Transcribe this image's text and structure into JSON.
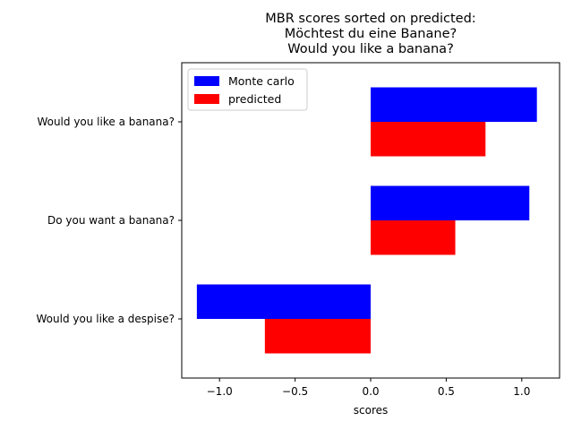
{
  "chart_data": {
    "type": "bar",
    "orientation": "horizontal",
    "title": "MBR scores sorted on predicted:\nMöchtest du eine Banane?\nWould you like a banana?",
    "xlabel": "scores",
    "ylabel": "",
    "xlim": [
      -1.25,
      1.25
    ],
    "xticks": [
      -1.0,
      -0.5,
      0.0,
      0.5,
      1.0
    ],
    "xtick_labels": [
      "−1.0",
      "−0.5",
      "0.0",
      "0.5",
      "1.0"
    ],
    "categories": [
      "Would you like a despise?",
      "Do you want a banana?",
      "Would you like a banana?"
    ],
    "series": [
      {
        "name": "Monte carlo",
        "color": "#0000ff",
        "values": [
          -1.15,
          1.05,
          1.1
        ]
      },
      {
        "name": "predicted",
        "color": "#ff0000",
        "values": [
          -0.7,
          0.56,
          0.76
        ]
      }
    ],
    "grid": false,
    "legend_position": "top-left"
  }
}
